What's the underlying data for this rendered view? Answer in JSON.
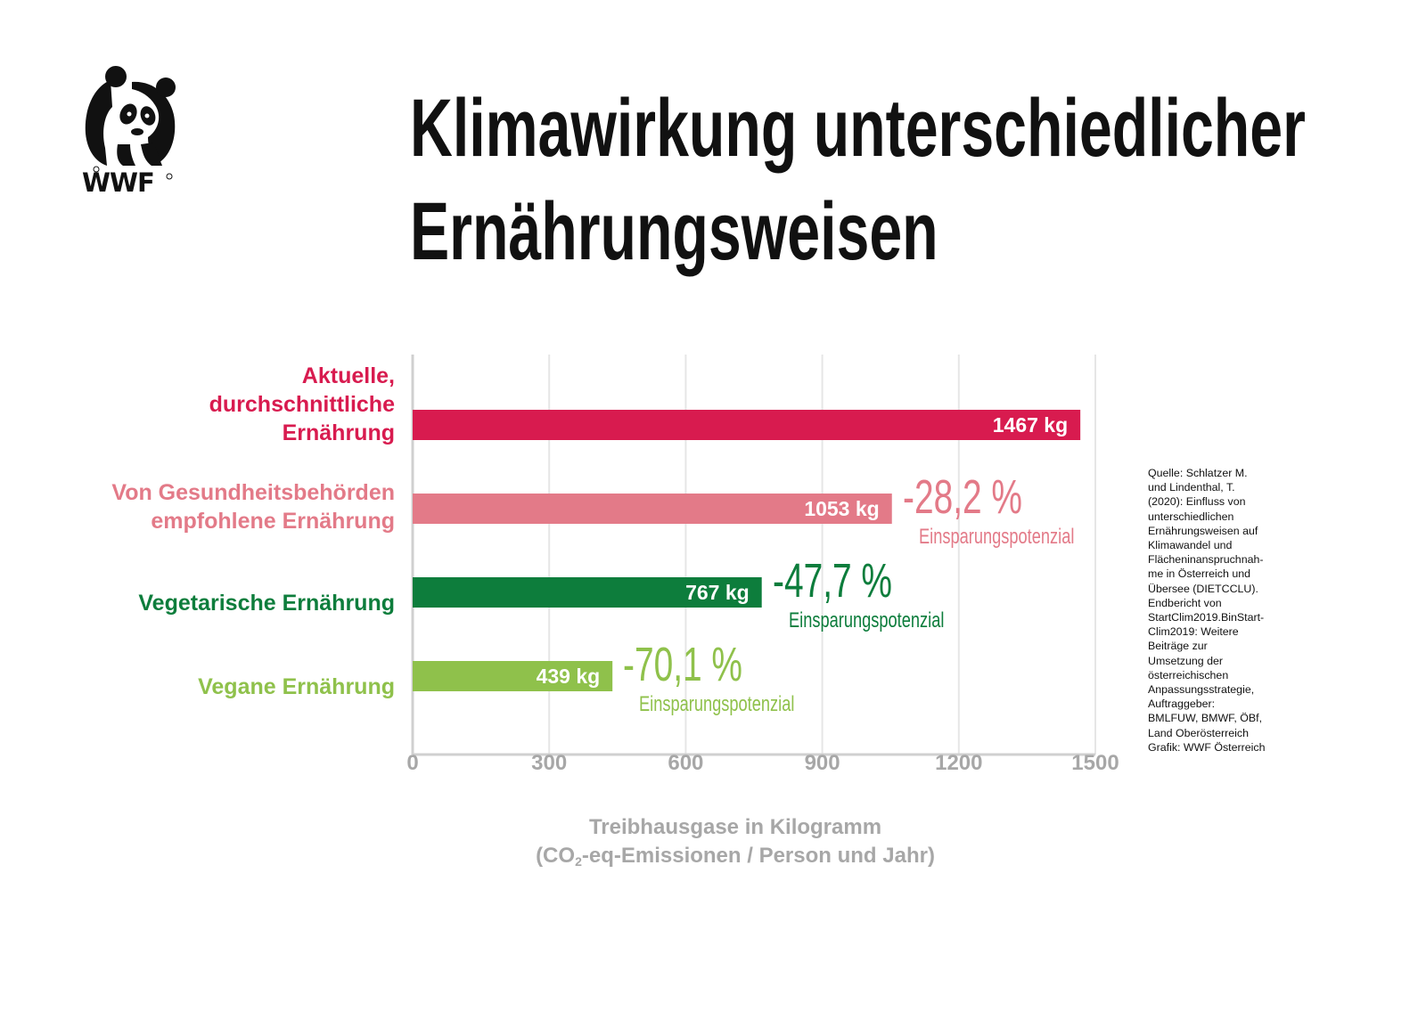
{
  "logo": {
    "name": "wwf-panda-logo",
    "text": "WWF"
  },
  "title": {
    "line1": "Klimawirkung unterschiedlicher",
    "line2": "Ernährungsweisen"
  },
  "chart_data": {
    "type": "bar",
    "orientation": "horizontal",
    "title": "Klimawirkung unterschiedlicher Ernährungsweisen",
    "categories": [
      "Aktuelle,\ndurchschnittliche\nErnährung",
      "Von Gesundheitsbehörden\nempfohlene Ernährung",
      "Vegetarische Ernährung",
      "Vegane Ernährung"
    ],
    "values": [
      1467,
      1053,
      767,
      439
    ],
    "value_labels": [
      "1467 kg",
      "1053 kg",
      "767 kg",
      "439 kg"
    ],
    "colors": [
      "#d81b4f",
      "#e37a88",
      "#0d7d3c",
      "#8fc14b"
    ],
    "savings": [
      null,
      {
        "percent": "-28,2 %",
        "label": "Einsparungspotenzial"
      },
      {
        "percent": "-47,7 %",
        "label": "Einsparungspotenzial"
      },
      {
        "percent": "-70,1 %",
        "label": "Einsparungspotenzial"
      }
    ],
    "xlim": [
      0,
      1500
    ],
    "xticks": [
      0,
      300,
      600,
      900,
      1200,
      1500
    ],
    "xtick_labels": [
      "0",
      "300",
      "600",
      "900",
      "1200",
      "1500"
    ],
    "xlabel_line1": "Treibhausgase in Kilogramm",
    "xlabel_line2_pre": "(CO",
    "xlabel_line2_sub": "2",
    "xlabel_line2_post": "-eq-Emissionen / Person und Jahr)",
    "grid": true,
    "gridline_color": "#e6e6e6",
    "axis_color": "#d0d0d0",
    "tick_label_color": "#a7a7a7"
  },
  "source": "Quelle: Schlatzer M.\nund Lindenthal, T.\n(2020): Einfluss von\nunterschiedlichen\nErnährungsweisen auf\nKlimawandel und\nFlächeninanspruchnah-\nme in Österreich und\nÜbersee (DIETCCLU).\nEndbericht von\nStartClim2019.BinStart-\nClim2019: Weitere\nBeiträge zur\nUmsetzung der\nösterreichischen\nAnpassungsstrategie,\nAuftraggeber:\nBMLFUW, BMWF, ÖBf,\nLand Oberösterreich\nGrafik: WWF Österreich"
}
